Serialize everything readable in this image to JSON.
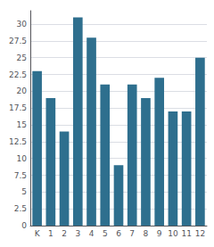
{
  "chart_data": {
    "type": "bar",
    "categories": [
      "K",
      "1",
      "2",
      "3",
      "4",
      "5",
      "6",
      "7",
      "8",
      "9",
      "10",
      "11",
      "12"
    ],
    "values": [
      23,
      19,
      14,
      31,
      28,
      21,
      9,
      21,
      19,
      22,
      17,
      17,
      25
    ],
    "color": "#2e6f8e",
    "ylim": [
      0,
      32
    ],
    "yticks": [
      0,
      2.5,
      5,
      7.5,
      10,
      12.5,
      15,
      17.5,
      20,
      22.5,
      25,
      27.5,
      30
    ],
    "grid": true
  }
}
